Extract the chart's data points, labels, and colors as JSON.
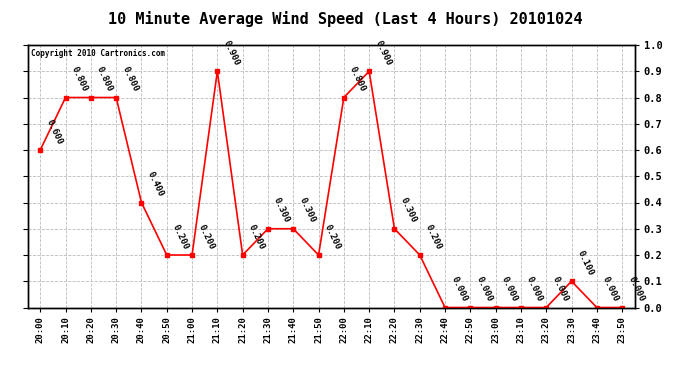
{
  "title": "10 Minute Average Wind Speed (Last 4 Hours) 20101024",
  "copyright_text": "Copyright 2010 Cartronics.com",
  "x_labels": [
    "20:00",
    "20:10",
    "20:20",
    "20:30",
    "20:40",
    "20:50",
    "21:00",
    "21:10",
    "21:20",
    "21:30",
    "21:40",
    "21:50",
    "22:00",
    "22:10",
    "22:20",
    "22:30",
    "22:40",
    "22:50",
    "23:00",
    "23:10",
    "23:20",
    "23:30",
    "23:40",
    "23:50"
  ],
  "y_values": [
    0.6,
    0.8,
    0.8,
    0.8,
    0.4,
    0.2,
    0.2,
    0.9,
    0.2,
    0.3,
    0.3,
    0.2,
    0.8,
    0.9,
    0.3,
    0.2,
    0.0,
    0.0,
    0.0,
    0.0,
    0.0,
    0.1,
    0.0,
    0.0
  ],
  "line_color": "#ff0000",
  "marker_color": "#ff0000",
  "marker": "s",
  "marker_size": 3,
  "ylim": [
    0.0,
    1.0
  ],
  "yticks_right": [
    0.0,
    0.1,
    0.2,
    0.3,
    0.4,
    0.5,
    0.6,
    0.7,
    0.8,
    0.9,
    1.0
  ],
  "bg_color": "#ffffff",
  "plot_bg_color": "#ffffff",
  "grid_color": "#bbbbbb",
  "grid_style": "--",
  "title_fontsize": 11,
  "annotation_fontsize": 6.5,
  "annotation_rotation": -65
}
